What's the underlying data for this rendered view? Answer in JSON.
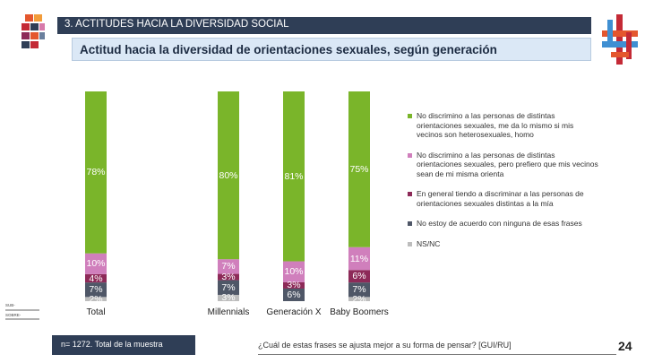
{
  "header": {
    "section_title": "3. ACTITUDES HACIA LA DIVERSIDAD SOCIAL",
    "subtitle": "Actitud hacia la diversidad de orientaciones sexuales, según generación"
  },
  "chart_data": {
    "type": "bar",
    "stacked": true,
    "percent": true,
    "categories": [
      "Total",
      "Millennials",
      "Generación X",
      "Baby Boomers"
    ],
    "series": [
      {
        "name": "No discrimino a las personas de distintas orientaciones sexuales, me da lo mismo si mis vecinos son heterosexuales, homo",
        "color": "#7ab52a",
        "values": [
          78,
          80,
          81,
          75
        ],
        "labels": [
          "78%",
          "80%",
          "81%",
          "75%"
        ]
      },
      {
        "name": "No discrimino a las personas de distintas orientaciones sexuales, pero prefiero que mis vecinos sean de mi misma orienta",
        "color": "#d07fbc",
        "values": [
          10,
          7,
          10,
          11
        ],
        "labels": [
          "10%",
          "7%",
          "10%",
          "11%"
        ]
      },
      {
        "name": "En general tiendo a discriminar a las personas de orientaciones sexuales distintas a la mía",
        "color": "#8d2a58",
        "values": [
          4,
          3,
          3,
          6
        ],
        "labels": [
          "4%",
          "3%",
          "3%",
          "6%"
        ]
      },
      {
        "name": "No estoy de acuerdo con ninguna de esas frases",
        "color": "#4f5767",
        "values": [
          7,
          7,
          6,
          7
        ],
        "labels": [
          "7%",
          "7%",
          "6%",
          "7%"
        ]
      },
      {
        "name": "NS/NC",
        "color": "#bdbdbd",
        "values": [
          2,
          3,
          0,
          2
        ],
        "labels": [
          "2%",
          "3%",
          "",
          "2%"
        ]
      }
    ],
    "ylim": [
      0,
      100
    ]
  },
  "footer": {
    "sample_note": "n= 1272. Total de la muestra",
    "question": "¿Cuál de estas frases se ajusta mejor a su forma de pensar? [GUI/RU]",
    "page_number": "24"
  },
  "stamp": {
    "line1": "SUB-",
    "line2": "SOBRE-"
  }
}
